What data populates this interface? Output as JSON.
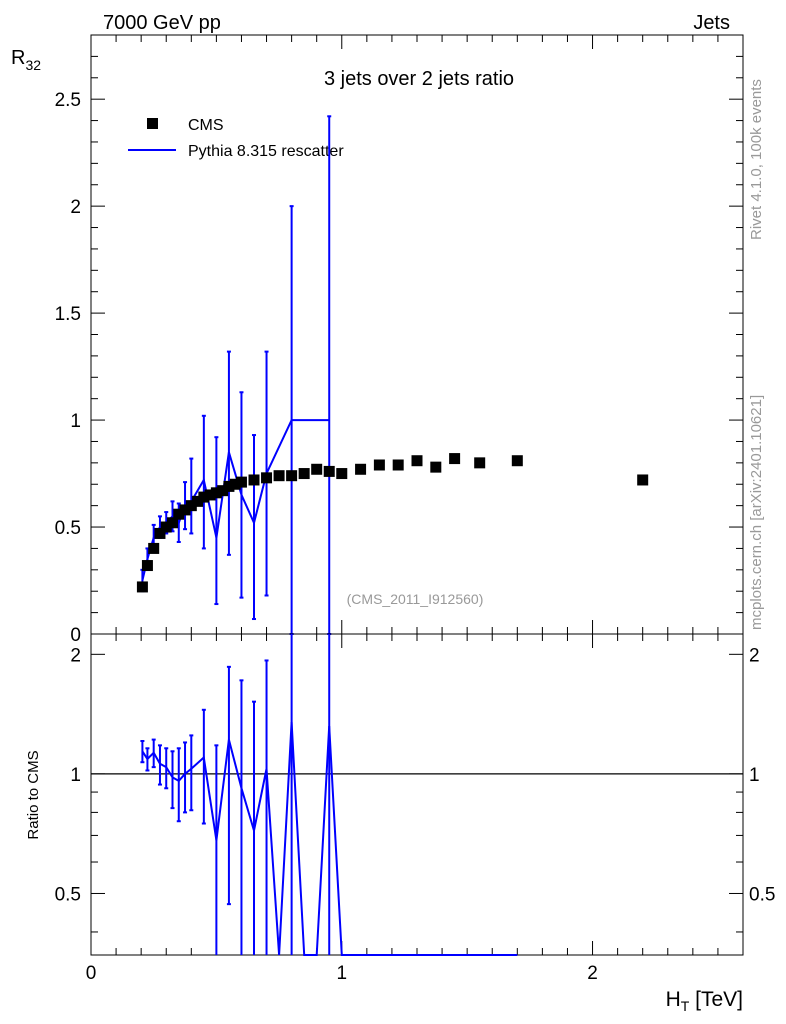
{
  "header": {
    "left": "7000 GeV pp",
    "right": "Jets"
  },
  "side_text": {
    "rivet": "Rivet 4.1.0,  100k events",
    "source": "mcplots.cern.ch [arXiv:2401.10621]"
  },
  "chart_data": [
    {
      "type": "scatter",
      "panel": "main",
      "title": "3 jets over 2 jets ratio",
      "analysis_label": "(CMS_2011_I912560)",
      "ylabel": "R",
      "ylabel_sub": "32",
      "xlim": [
        0,
        2.6
      ],
      "ylim": [
        0,
        2.8
      ],
      "yticks": [
        0.5,
        1,
        1.5,
        2,
        2.5
      ],
      "ytick_labels": [
        "0.5",
        "1",
        "1.5",
        "2",
        "2.5"
      ],
      "bottom_ytick_label": "0",
      "legend": {
        "position": "top-left",
        "entries": [
          "CMS",
          "Pythia 8.315 rescatter"
        ]
      },
      "series": [
        {
          "name": "CMS",
          "style": "markers",
          "color": "#000000",
          "x": [
            0.205,
            0.225,
            0.25,
            0.275,
            0.3,
            0.325,
            0.35,
            0.375,
            0.4,
            0.425,
            0.45,
            0.475,
            0.5,
            0.525,
            0.55,
            0.575,
            0.6,
            0.65,
            0.7,
            0.75,
            0.8,
            0.85,
            0.9,
            0.95,
            1.0,
            1.075,
            1.15,
            1.225,
            1.3,
            1.375,
            1.45,
            1.55,
            1.7,
            2.2
          ],
          "y": [
            0.22,
            0.32,
            0.4,
            0.47,
            0.5,
            0.52,
            0.56,
            0.58,
            0.6,
            0.62,
            0.64,
            0.65,
            0.66,
            0.67,
            0.69,
            0.7,
            0.71,
            0.72,
            0.73,
            0.74,
            0.74,
            0.75,
            0.77,
            0.76,
            0.75,
            0.77,
            0.79,
            0.79,
            0.81,
            0.78,
            0.82,
            0.8,
            0.81,
            0.72
          ]
        },
        {
          "name": "Pythia 8.315 rescatter",
          "style": "line",
          "color": "#0000ff",
          "x": [
            0.205,
            0.225,
            0.25,
            0.275,
            0.3,
            0.325,
            0.35,
            0.375,
            0.4,
            0.45,
            0.5,
            0.55,
            0.6,
            0.65,
            0.7,
            0.8,
            0.95
          ],
          "y": [
            0.25,
            0.35,
            0.45,
            0.5,
            0.52,
            0.55,
            0.52,
            0.6,
            0.62,
            0.72,
            0.45,
            0.85,
            0.65,
            0.52,
            0.75,
            1.0,
            1.0
          ],
          "err_lo": [
            0.05,
            0.05,
            0.06,
            0.05,
            0.05,
            0.07,
            0.09,
            0.11,
            0.15,
            0.32,
            0.31,
            0.48,
            0.48,
            0.45,
            0.57,
            1.0,
            1.0
          ],
          "err_hi": [
            0.05,
            0.05,
            0.06,
            0.05,
            0.05,
            0.07,
            0.09,
            0.11,
            0.2,
            0.3,
            0.47,
            0.47,
            0.48,
            0.41,
            0.57,
            1.0,
            1.42
          ]
        }
      ]
    },
    {
      "type": "line",
      "panel": "ratio",
      "xlabel": "H",
      "xlabel_sub": "T",
      "xlabel_unit": " [TeV]",
      "ylabel": "Ratio to CMS",
      "xlim": [
        0,
        2.6
      ],
      "ylim": [
        0.35,
        2.25
      ],
      "xticks": [
        0,
        1,
        2
      ],
      "xtick_labels": [
        "0",
        "1",
        "2"
      ],
      "yticks": [
        0.5,
        1,
        2
      ],
      "ytick_labels": [
        "0.5",
        "1",
        "2"
      ],
      "reference_line": 1.0,
      "series": [
        {
          "name": "Pythia 8.315 rescatter / CMS",
          "color": "#0000ff",
          "x": [
            0.205,
            0.225,
            0.25,
            0.275,
            0.3,
            0.325,
            0.35,
            0.375,
            0.4,
            0.45,
            0.5,
            0.55,
            0.6,
            0.65,
            0.7,
            0.75,
            0.8,
            0.85,
            0.9,
            0.95,
            1.0,
            1.075,
            1.15,
            1.225,
            1.3,
            1.375,
            1.45,
            1.55,
            1.7
          ],
          "y": [
            1.14,
            1.09,
            1.13,
            1.06,
            1.04,
            0.98,
            0.96,
            1.0,
            1.03,
            1.1,
            0.68,
            1.22,
            0.92,
            0.72,
            1.03,
            0.3,
            1.35,
            0.3,
            0.3,
            1.32,
            0.3,
            0.3,
            0.3,
            0.3,
            0.3,
            0.3,
            0.3,
            0.3,
            0.3
          ],
          "err_lo": [
            0.07,
            0.07,
            0.09,
            0.12,
            0.12,
            0.16,
            0.2,
            0.2,
            0.22,
            0.35,
            0.5,
            0.75,
            0.8,
            0.8,
            0.9,
            0,
            1.5,
            0,
            0,
            1.5,
            0,
            0,
            0,
            0,
            0,
            0,
            0,
            0,
            0
          ],
          "err_hi": [
            0.07,
            0.07,
            0.09,
            0.12,
            0.12,
            0.16,
            0.2,
            0.2,
            0.22,
            0.35,
            0.5,
            0.64,
            0.8,
            0.8,
            0.9,
            0,
            1.2,
            0,
            0,
            1.2,
            0,
            0,
            0,
            0,
            0,
            0,
            0,
            0,
            0
          ]
        }
      ]
    }
  ]
}
